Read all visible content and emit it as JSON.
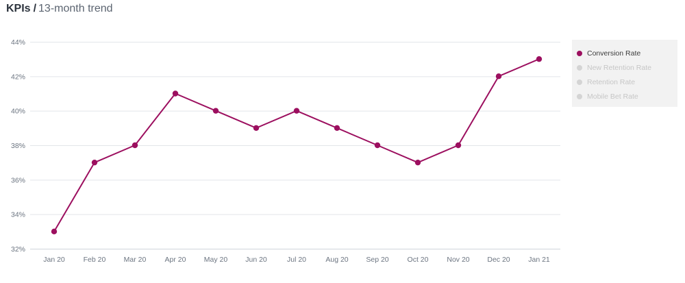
{
  "header": {
    "title": "KPIs",
    "separator": "/",
    "subtitle": "13-month trend"
  },
  "colors": {
    "series_active": "#9c0f5f",
    "legend_inactive_dot": "#d4d4d4",
    "legend_inactive_text": "#c6c6c6",
    "legend_active_text": "#3c3c3c"
  },
  "legend": [
    {
      "label": "Conversion Rate",
      "active": true
    },
    {
      "label": "New Retention Rate",
      "active": false
    },
    {
      "label": "Retention Rate",
      "active": false
    },
    {
      "label": "Mobile Bet Rate",
      "active": false
    }
  ],
  "chart_data": {
    "type": "line",
    "title": "",
    "xlabel": "",
    "ylabel": "",
    "categories": [
      "Jan 20",
      "Feb 20",
      "Mar 20",
      "Apr 20",
      "May 20",
      "Jun 20",
      "Jul 20",
      "Aug 20",
      "Sep 20",
      "Oct 20",
      "Nov 20",
      "Dec 20",
      "Jan 21"
    ],
    "series": [
      {
        "name": "Conversion Rate",
        "values": [
          33,
          37,
          38,
          41,
          40,
          39,
          40,
          39,
          38,
          37,
          38,
          42,
          43
        ]
      }
    ],
    "ylim": [
      32,
      44
    ],
    "yticks": [
      32,
      34,
      36,
      38,
      40,
      42,
      44
    ],
    "ytick_suffix": "%",
    "grid": true,
    "legend_position": "right"
  }
}
